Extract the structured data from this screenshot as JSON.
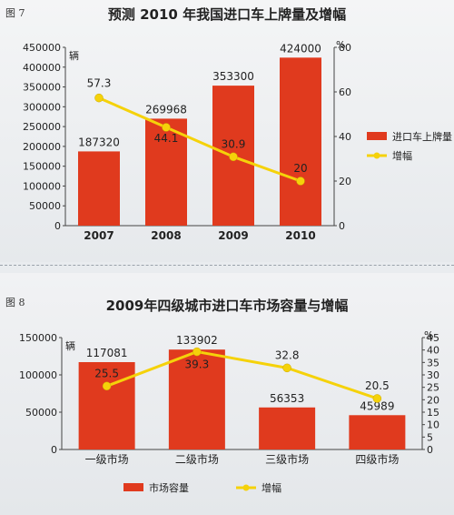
{
  "chart_data": [
    {
      "type": "bar",
      "figure_label": "图 7",
      "title": "预测 2010 年我国进口车上牌量及增幅",
      "y_unit": "辆",
      "y2_unit": "%",
      "ylim": [
        0,
        450000
      ],
      "y_ticks": [
        "0",
        "50000",
        "100000",
        "150000",
        "200000",
        "250000",
        "300000",
        "350000",
        "400000",
        "450000"
      ],
      "y2lim": [
        0,
        80
      ],
      "y2_ticks": [
        "0",
        "20",
        "40",
        "60",
        "80"
      ],
      "categories": [
        "2007",
        "2008",
        "2009",
        "2010"
      ],
      "series": [
        {
          "name": "进口车上牌量",
          "kind": "bar",
          "values": [
            187320,
            269968,
            353300,
            424000
          ],
          "labels": [
            "187320",
            "269968",
            "353300",
            "424000"
          ],
          "color": "#e03a1e"
        },
        {
          "name": "增幅",
          "kind": "line",
          "axis": "right",
          "values": [
            57.3,
            44.1,
            30.9,
            20
          ],
          "labels": [
            "57.3",
            "44.1",
            "30.9",
            "20"
          ],
          "color": "#f5d20a"
        }
      ],
      "legend_position": "right",
      "grid": false
    },
    {
      "type": "bar",
      "figure_label": "图 8",
      "title": "2009年四级城市进口车市场容量与增幅",
      "y_unit": "辆",
      "y2_unit": "%",
      "ylim": [
        0,
        150000
      ],
      "y_ticks": [
        "0",
        "50000",
        "100000",
        "150000"
      ],
      "y2lim": [
        0,
        45
      ],
      "y2_ticks": [
        "0",
        "5",
        "10",
        "15",
        "20",
        "25",
        "30",
        "35",
        "40",
        "45"
      ],
      "categories": [
        "一级市场",
        "二级市场",
        "三级市场",
        "四级市场"
      ],
      "series": [
        {
          "name": "市场容量",
          "kind": "bar",
          "values": [
            117081,
            133902,
            56353,
            45989
          ],
          "labels": [
            "117081",
            "133902",
            "56353",
            "45989"
          ],
          "color": "#e03a1e"
        },
        {
          "name": "增幅",
          "kind": "line",
          "axis": "right",
          "values": [
            25.5,
            39.3,
            32.8,
            20.5
          ],
          "labels": [
            "25.5",
            "39.3",
            "32.8",
            "20.5"
          ],
          "color": "#f5d20a"
        }
      ],
      "legend_position": "bottom",
      "grid": false
    }
  ]
}
